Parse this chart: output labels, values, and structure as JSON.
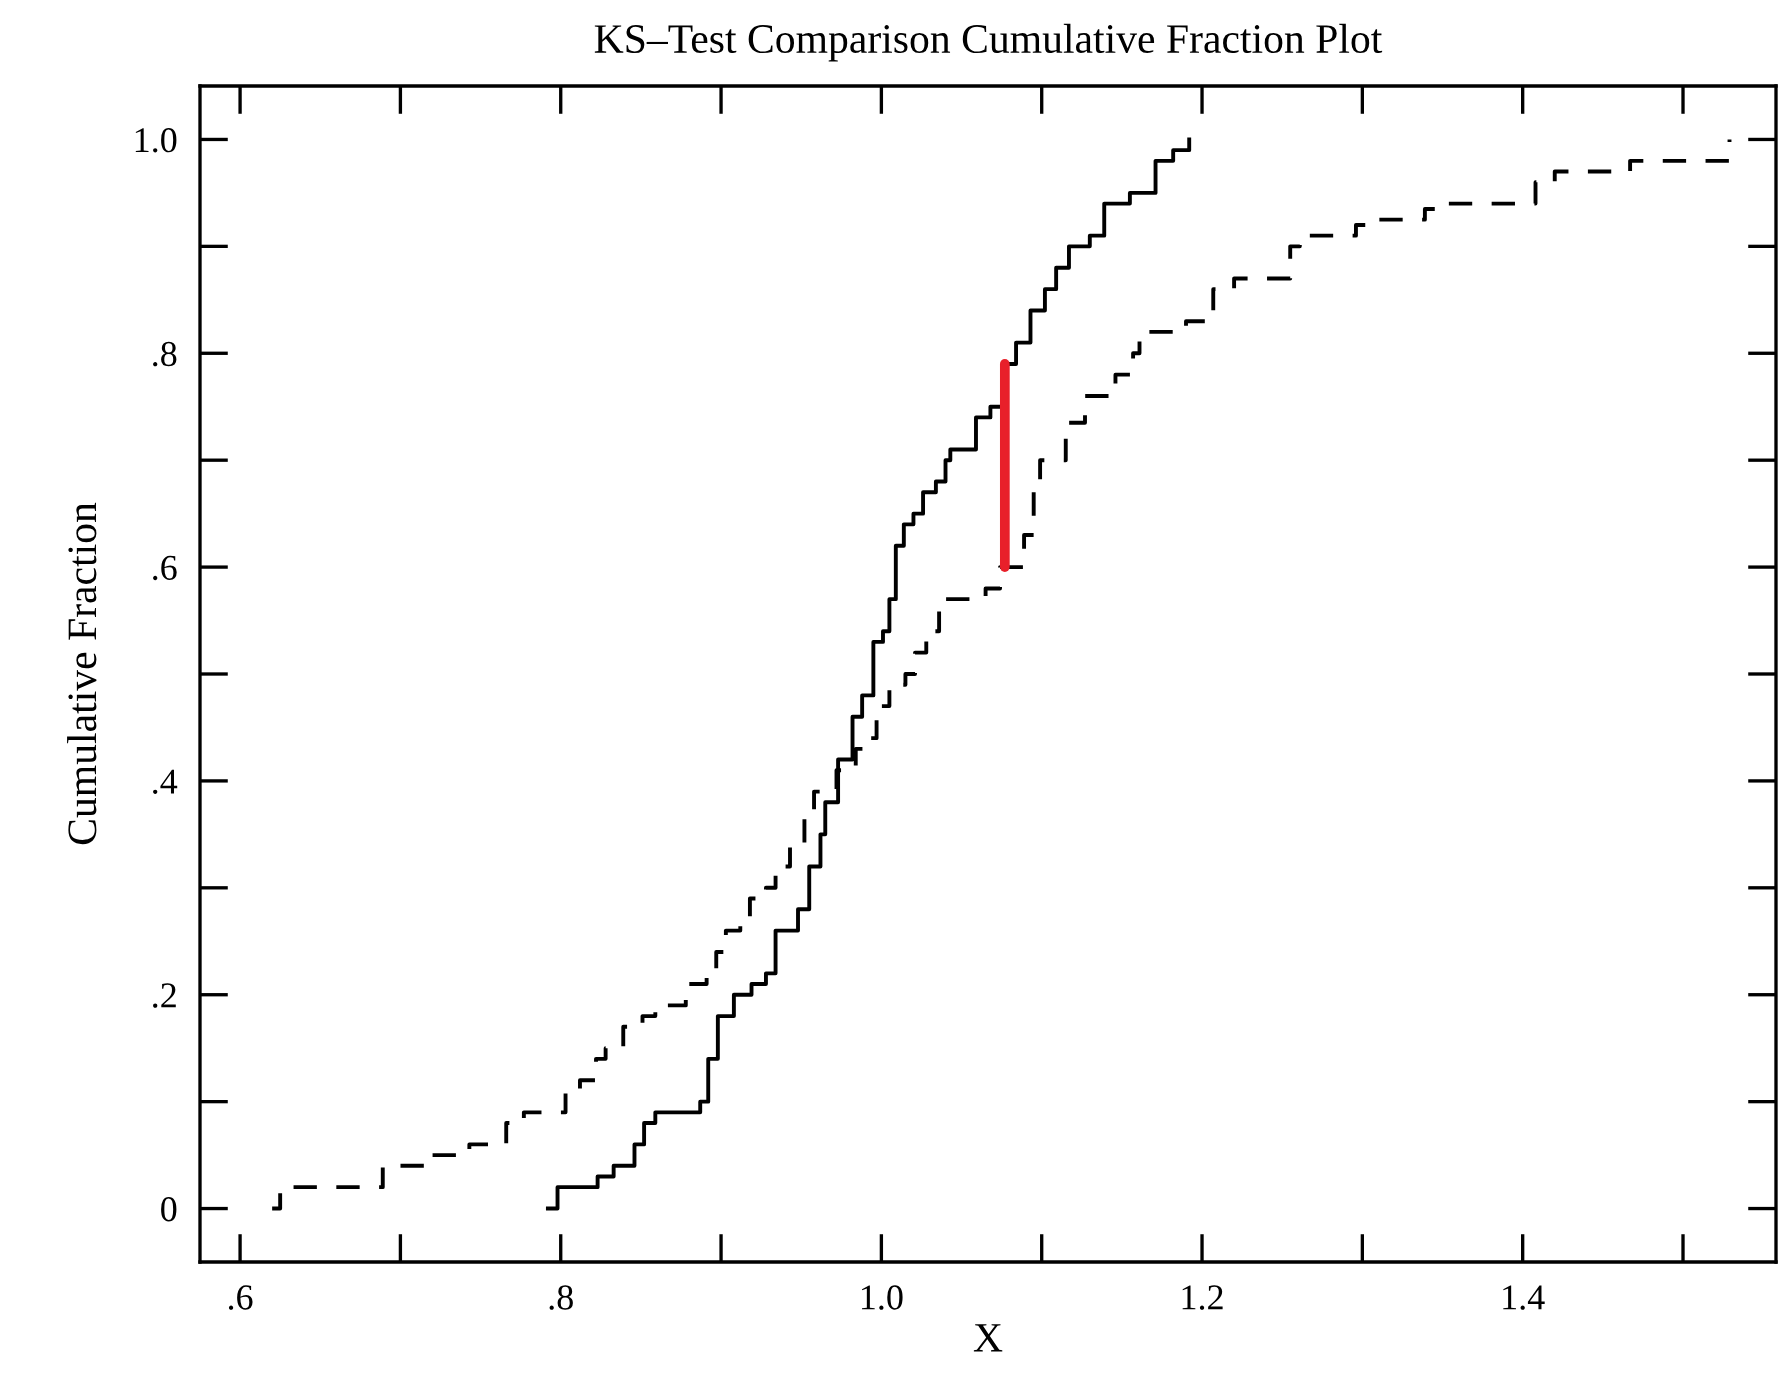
{
  "chart_data": {
    "type": "step",
    "title": "KS–Test Comparison Cumulative Fraction Plot",
    "xlabel": "X",
    "ylabel": "Cumulative Fraction",
    "xlim": [
      0.575,
      1.558
    ],
    "ylim": [
      -0.05,
      1.05
    ],
    "xticks": [
      {
        "value": 0.6,
        "label": ".6"
      },
      {
        "value": 0.7,
        "label": null
      },
      {
        "value": 0.8,
        "label": ".8"
      },
      {
        "value": 0.9,
        "label": null
      },
      {
        "value": 1.0,
        "label": "1.0"
      },
      {
        "value": 1.1,
        "label": null
      },
      {
        "value": 1.2,
        "label": "1.2"
      },
      {
        "value": 1.3,
        "label": null
      },
      {
        "value": 1.4,
        "label": "1.4"
      },
      {
        "value": 1.5,
        "label": null
      }
    ],
    "yticks": [
      0,
      {
        "value": 0.1,
        "label": null
      },
      {
        "value": 0.2,
        "label": ".2"
      },
      {
        "value": 0.3,
        "label": null
      },
      {
        "value": 0.4,
        "label": ".4"
      },
      {
        "value": 0.5,
        "label": null
      },
      {
        "value": 0.6,
        "label": ".6"
      },
      {
        "value": 0.7,
        "label": null
      },
      {
        "value": 0.8,
        "label": ".8"
      },
      {
        "value": 0.9,
        "label": null
      },
      {
        "value": 1.0,
        "label": "1.0"
      }
    ],
    "grid": false,
    "series": [
      {
        "color": "#000000",
        "line_style": "solid",
        "x": [
          0.792,
          0.798,
          0.823,
          0.833,
          0.846,
          0.852,
          0.859,
          0.887,
          0.892,
          0.898,
          0.908,
          0.919,
          0.928,
          0.934,
          0.948,
          0.955,
          0.962,
          0.965,
          0.973,
          0.982,
          0.988,
          0.995,
          1.001,
          1.005,
          1.009,
          1.014,
          1.02,
          1.026,
          1.034,
          1.04,
          1.043,
          1.059,
          1.068,
          1.076,
          1.084,
          1.093,
          1.102,
          1.109,
          1.117,
          1.13,
          1.139,
          1.155,
          1.171,
          1.182,
          1.192
        ],
        "values": [
          0,
          0.02,
          0.03,
          0.04,
          0.06,
          0.08,
          0.09,
          0.1,
          0.14,
          0.18,
          0.2,
          0.21,
          0.22,
          0.26,
          0.28,
          0.32,
          0.35,
          0.38,
          0.42,
          0.46,
          0.48,
          0.53,
          0.54,
          0.57,
          0.62,
          0.64,
          0.65,
          0.67,
          0.68,
          0.7,
          0.71,
          0.74,
          0.75,
          0.79,
          0.81,
          0.84,
          0.86,
          0.88,
          0.9,
          0.91,
          0.94,
          0.95,
          0.98,
          0.99,
          1.0
        ]
      },
      {
        "color": "#000000",
        "line_style": "dashed",
        "x": [
          0.62,
          0.625,
          0.689,
          0.715,
          0.743,
          0.766,
          0.777,
          0.803,
          0.812,
          0.822,
          0.828,
          0.839,
          0.851,
          0.859,
          0.878,
          0.891,
          0.897,
          0.903,
          0.912,
          0.918,
          0.928,
          0.934,
          0.943,
          0.952,
          0.958,
          0.972,
          0.984,
          0.993,
          0.997,
          1.005,
          1.015,
          1.021,
          1.028,
          1.036,
          1.065,
          1.074,
          1.089,
          1.095,
          1.099,
          1.115,
          1.127,
          1.146,
          1.157,
          1.161,
          1.19,
          1.207,
          1.22,
          1.255,
          1.261,
          1.296,
          1.307,
          1.339,
          1.351,
          1.408,
          1.42,
          1.467,
          1.529
        ],
        "values": [
          0,
          0.02,
          0.04,
          0.05,
          0.06,
          0.08,
          0.09,
          0.11,
          0.12,
          0.14,
          0.15,
          0.17,
          0.18,
          0.19,
          0.21,
          0.22,
          0.24,
          0.26,
          0.27,
          0.29,
          0.3,
          0.32,
          0.34,
          0.37,
          0.39,
          0.41,
          0.43,
          0.44,
          0.47,
          0.49,
          0.5,
          0.52,
          0.54,
          0.57,
          0.58,
          0.6,
          0.63,
          0.68,
          0.7,
          0.735,
          0.76,
          0.78,
          0.8,
          0.82,
          0.83,
          0.86,
          0.87,
          0.9,
          0.91,
          0.92,
          0.925,
          0.935,
          0.94,
          0.96,
          0.97,
          0.98,
          1.0
        ]
      },
      {
        "type": "line",
        "color": "#e8202a",
        "line_style": "solid",
        "x": [
          1.077,
          1.077
        ],
        "values": [
          0.6,
          0.79
        ]
      }
    ]
  }
}
